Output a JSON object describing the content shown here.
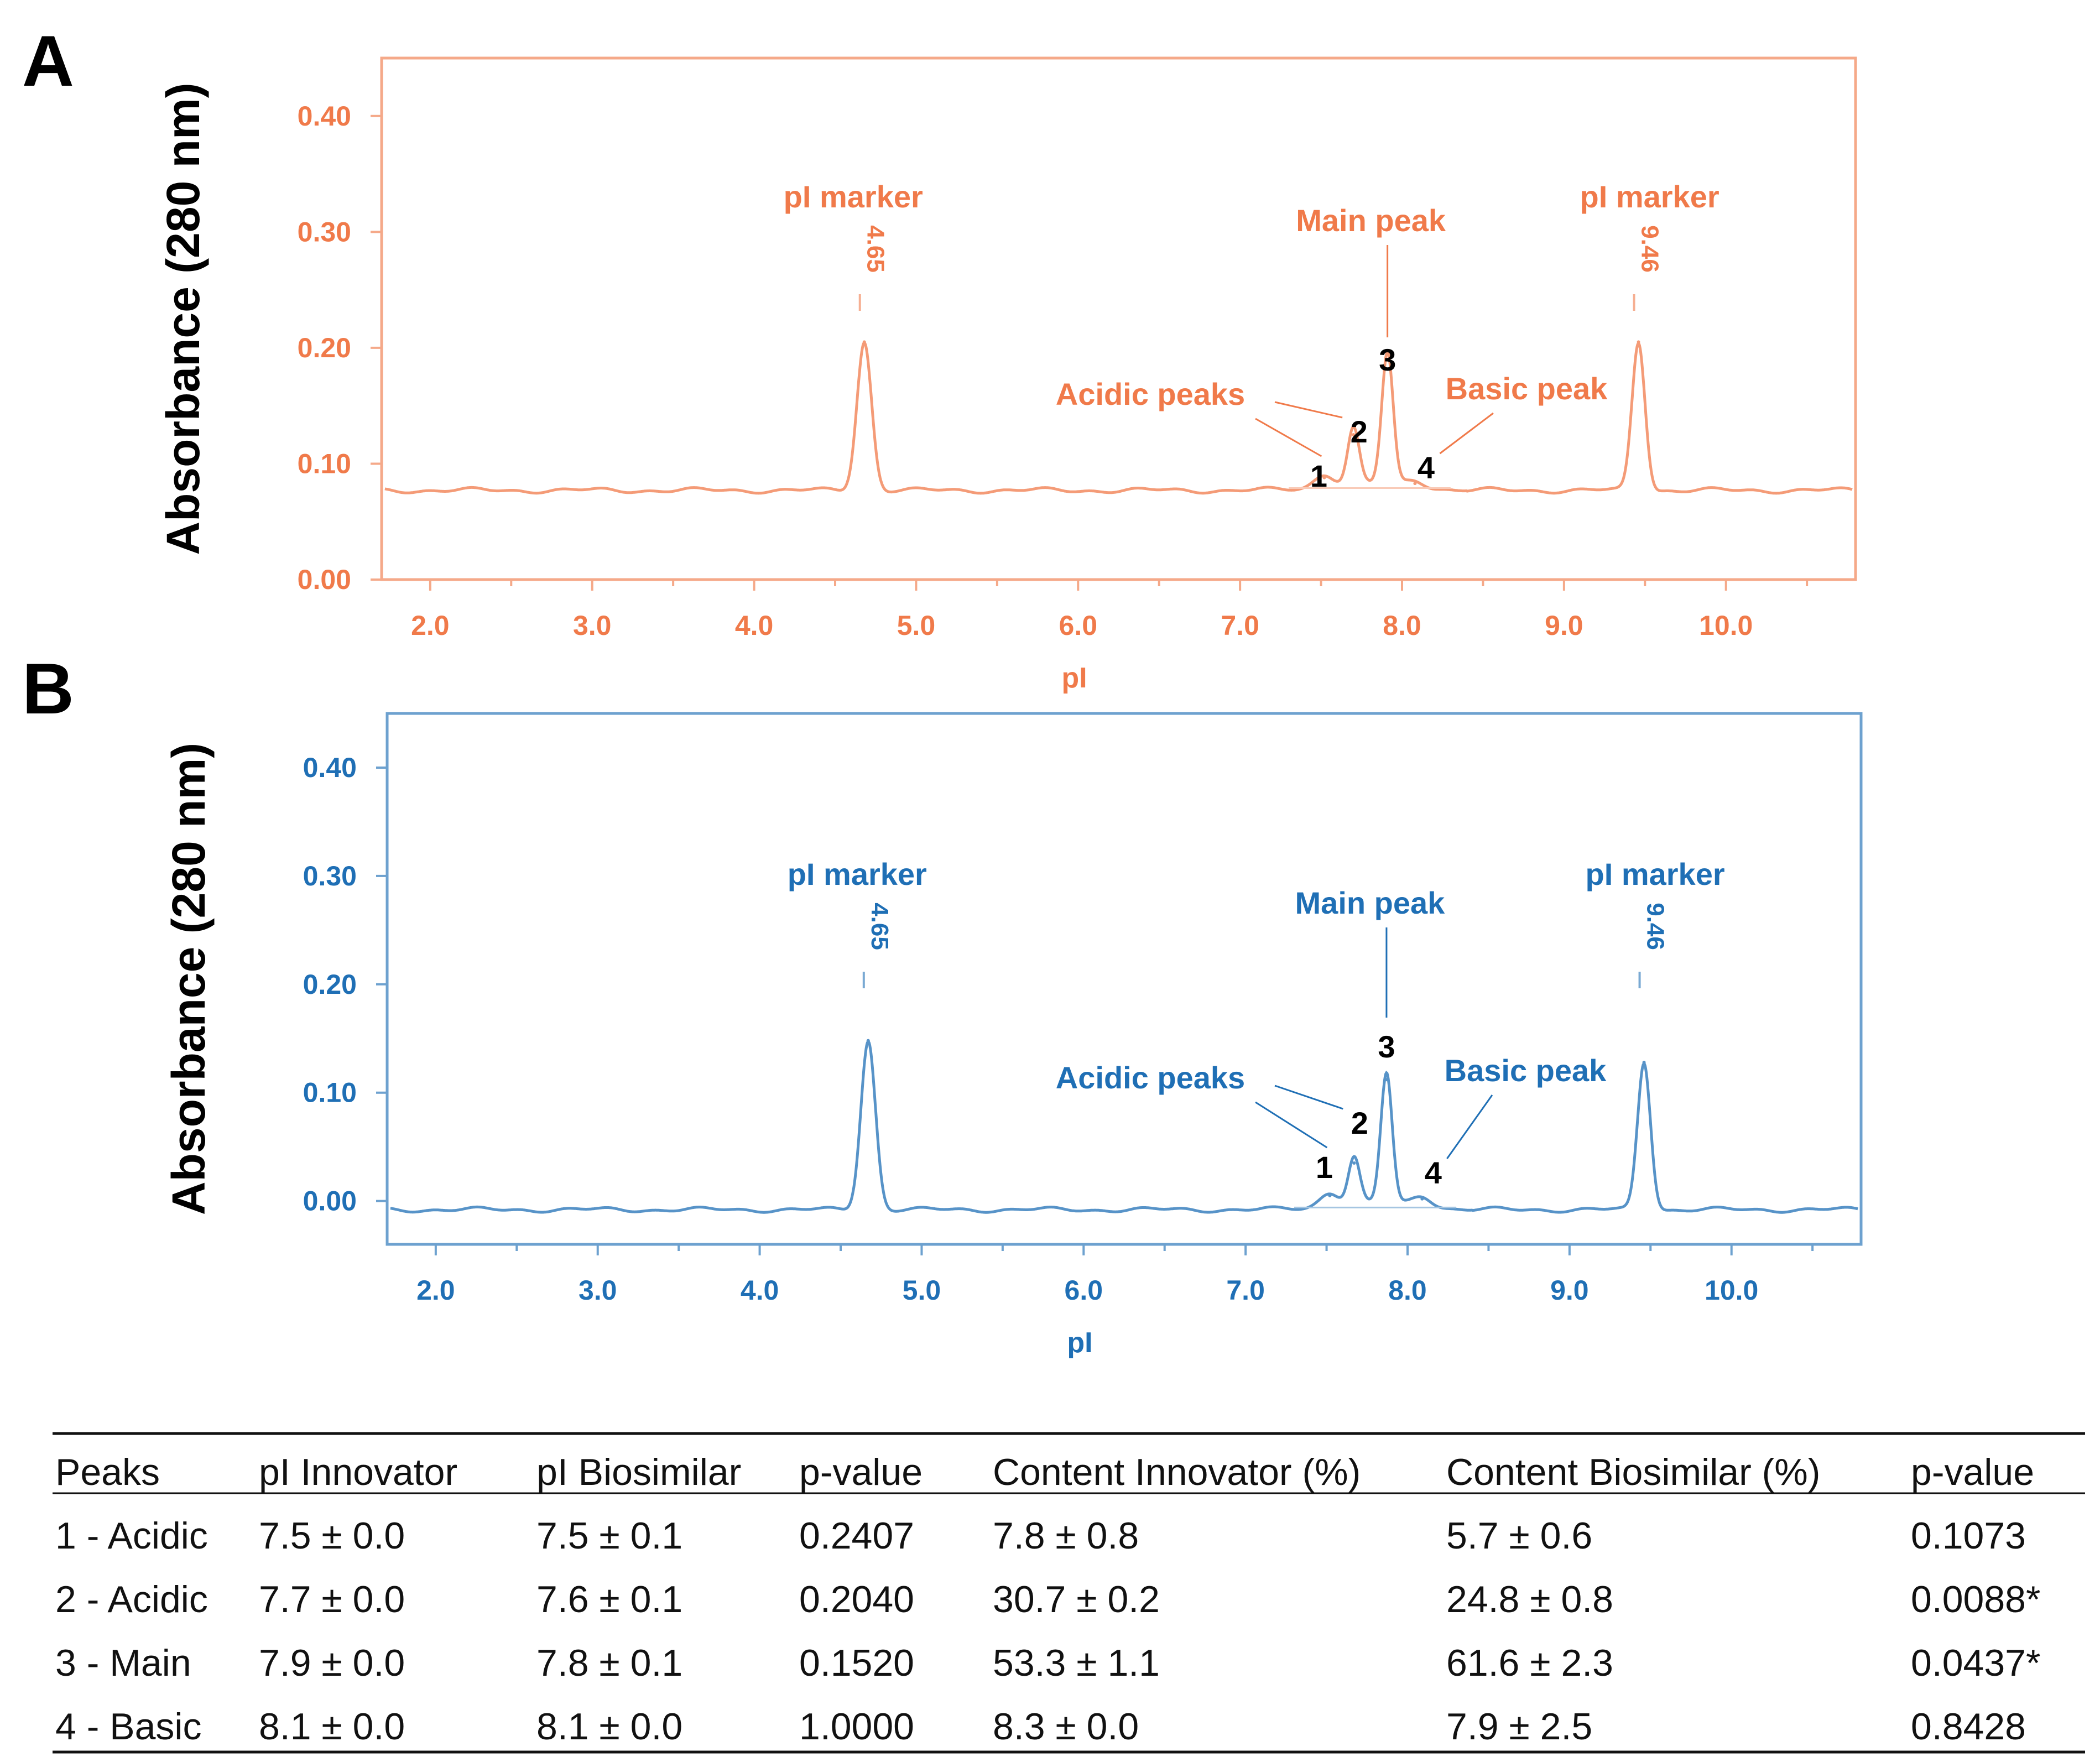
{
  "chart_data": [
    {
      "type": "line",
      "panel_label": "A",
      "color": "#f07a4a",
      "ylabel": "Absorbance (280 nm)",
      "xlabel": "pI",
      "xlim": [
        1.7,
        10.8
      ],
      "ylim": [
        0.0,
        0.45
      ],
      "xticks": [
        "2.0",
        "3.0",
        "4.0",
        "5.0",
        "6.0",
        "7.0",
        "8.0",
        "9.0",
        "10.0"
      ],
      "yticks": [
        "0.00",
        "0.10",
        "0.20",
        "0.30",
        "0.40"
      ],
      "baseline": 0.077,
      "peaks": [
        {
          "x": 4.68,
          "y": 0.205
        },
        {
          "x": 7.52,
          "y": 0.088
        },
        {
          "x": 7.7,
          "y": 0.125
        },
        {
          "x": 7.91,
          "y": 0.19
        },
        {
          "x": 8.08,
          "y": 0.083
        },
        {
          "x": 9.46,
          "y": 0.205
        }
      ],
      "annotations": {
        "pi_marker_left": "pI marker",
        "pi_marker_right": "pI marker",
        "marker_left_value": "4.65",
        "marker_right_value": "9.46",
        "main_peak": "Main peak",
        "acidic_peaks": "Acidic peaks",
        "basic_peak": "Basic peak",
        "peak_numbers": [
          "1",
          "2",
          "3",
          "4"
        ]
      }
    },
    {
      "type": "line",
      "panel_label": "B",
      "color": "#1f6fb5",
      "ylabel": "Absorbance (280 nm)",
      "xlabel": "pI",
      "xlim": [
        1.7,
        10.8
      ],
      "ylim": [
        -0.04,
        0.45
      ],
      "xticks": [
        "2.0",
        "3.0",
        "4.0",
        "5.0",
        "6.0",
        "7.0",
        "8.0",
        "9.0",
        "10.0"
      ],
      "yticks": [
        "0.00",
        "0.10",
        "0.20",
        "0.30",
        "0.40"
      ],
      "baseline": -0.008,
      "peaks": [
        {
          "x": 4.67,
          "y": 0.148
        },
        {
          "x": 7.52,
          "y": 0.005
        },
        {
          "x": 7.67,
          "y": 0.035
        },
        {
          "x": 7.87,
          "y": 0.112
        },
        {
          "x": 8.09,
          "y": 0.002
        },
        {
          "x": 9.46,
          "y": 0.128
        }
      ],
      "annotations": {
        "pi_marker_left": "pI marker",
        "pi_marker_right": "pI marker",
        "marker_left_value": "4.65",
        "marker_right_value": "9.46",
        "main_peak": "Main peak",
        "acidic_peaks": "Acidic peaks",
        "basic_peak": "Basic peak",
        "peak_numbers": [
          "1",
          "2",
          "3",
          "4"
        ]
      }
    }
  ],
  "table": {
    "headers": [
      "Peaks",
      "pI Innovator",
      "pI Biosimilar",
      "p-value",
      "Content Innovator (%)",
      "Content Biosimilar (%)",
      "p-value"
    ],
    "rows": [
      [
        "1 - Acidic",
        "7.5 ± 0.0",
        "7.5 ± 0.1",
        "0.2407",
        "7.8 ± 0.8",
        "5.7 ± 0.6",
        "0.1073"
      ],
      [
        "2 - Acidic",
        "7.7 ± 0.0",
        "7.6 ± 0.1",
        "0.2040",
        "30.7 ± 0.2",
        "24.8 ± 0.8",
        "0.0088*"
      ],
      [
        "3 - Main",
        "7.9 ± 0.0",
        "7.8 ± 0.1",
        "0.1520",
        "53.3 ± 1.1",
        "61.6 ± 2.3",
        "0.0437*"
      ],
      [
        "4 - Basic",
        "8.1 ± 0.0",
        "8.1 ± 0.0",
        "1.0000",
        "8.3 ± 0.0",
        "7.9 ± 2.5",
        "0.8428"
      ]
    ]
  }
}
